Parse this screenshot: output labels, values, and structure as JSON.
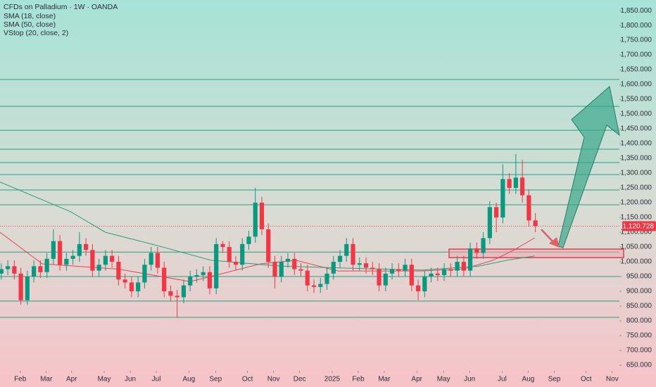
{
  "chart_data": {
    "type": "candlestick",
    "title": "CFDs on Palladium · 1W · OANDA",
    "indicators": [
      "SMA (18, close)",
      "SMA (50, close)",
      "VStop (20, close, 2)"
    ],
    "up_color": "#089981",
    "down_color": "#f23645",
    "open": [
      960,
      975,
      985,
      960,
      870,
      950,
      985,
      965,
      1010,
      1070,
      990,
      1010,
      1020,
      1060,
      1040,
      970,
      990,
      1020,
      1000,
      940,
      930,
      900,
      930,
      990,
      1030,
      980,
      900,
      885,
      880,
      920,
      950,
      955,
      965,
      910,
      1060,
      1050,
      1000,
      990,
      1060,
      1085,
      1200,
      1110,
      1000,
      950,
      1000,
      1010,
      975,
      970,
      920,
      915,
      925,
      960,
      1000,
      1020,
      1060,
      990,
      995,
      980,
      975,
      920,
      960,
      975,
      970,
      990,
      920,
      900,
      950,
      960,
      955,
      975,
      970,
      1000,
      970,
      1045,
      1030,
      1080,
      1185,
      1150,
      1280,
      1250,
      1285,
      1225,
      1140
    ],
    "high": [
      995,
      1005,
      1005,
      980,
      970,
      1005,
      1005,
      1030,
      1110,
      1090,
      1030,
      1040,
      1100,
      1080,
      1060,
      1010,
      1040,
      1040,
      1020,
      960,
      950,
      950,
      1010,
      1050,
      1050,
      1000,
      920,
      905,
      940,
      970,
      975,
      985,
      985,
      1080,
      1070,
      1070,
      1020,
      1080,
      1105,
      1250,
      1220,
      1130,
      1020,
      1020,
      1030,
      1030,
      995,
      990,
      940,
      945,
      980,
      1020,
      1040,
      1080,
      1080,
      1015,
      1015,
      1000,
      995,
      980,
      995,
      995,
      1010,
      1010,
      940,
      970,
      980,
      980,
      995,
      995,
      1020,
      1020,
      1065,
      1065,
      1100,
      1205,
      1200,
      1330,
      1300,
      1365,
      1345,
      1245,
      1165
    ],
    "low": [
      940,
      955,
      940,
      855,
      855,
      930,
      945,
      945,
      990,
      970,
      970,
      990,
      1000,
      1020,
      950,
      950,
      970,
      980,
      920,
      910,
      880,
      880,
      910,
      970,
      960,
      880,
      865,
      810,
      860,
      900,
      930,
      935,
      890,
      890,
      1030,
      980,
      970,
      970,
      1040,
      1065,
      1090,
      980,
      910,
      930,
      980,
      955,
      950,
      900,
      895,
      895,
      905,
      940,
      980,
      1000,
      970,
      970,
      960,
      955,
      900,
      900,
      940,
      950,
      950,
      900,
      870,
      880,
      930,
      935,
      935,
      950,
      950,
      950,
      950,
      1010,
      1010,
      1060,
      1100,
      1130,
      1230,
      1230,
      1200,
      1120,
      1100
    ],
    "close": [
      975,
      985,
      960,
      870,
      950,
      985,
      965,
      1010,
      1070,
      990,
      1010,
      1020,
      1060,
      1040,
      970,
      990,
      1020,
      1000,
      940,
      930,
      900,
      930,
      990,
      1030,
      980,
      900,
      885,
      880,
      920,
      950,
      955,
      965,
      910,
      1060,
      1050,
      1000,
      990,
      1060,
      1085,
      1200,
      1110,
      1000,
      950,
      1000,
      1010,
      975,
      970,
      920,
      915,
      925,
      960,
      1000,
      1020,
      1060,
      990,
      995,
      980,
      975,
      920,
      960,
      975,
      970,
      990,
      920,
      900,
      950,
      960,
      955,
      975,
      970,
      1000,
      970,
      1045,
      1030,
      1080,
      1185,
      1150,
      1280,
      1250,
      1285,
      1225,
      1140,
      1121
    ],
    "series": [
      {
        "name": "SMA (18, close)",
        "color": "#e8454f",
        "x": [
          -0.2,
          6.3,
          18,
          29,
          35.5,
          39.8,
          45.2,
          51.7,
          58.2,
          64.6,
          71.1,
          75.5,
          78.7,
          81.9
        ],
        "values": [
          1100,
          993,
          975,
          933,
          969,
          993,
          1005,
          969,
          969,
          969,
          976,
          1005,
          1040,
          1081
        ]
      },
      {
        "name": "SMA (50, close)",
        "color": "#26a17e",
        "x": [
          -0.2,
          10.6,
          16,
          23.6,
          32.2,
          43,
          53.8,
          64.6,
          73.3,
          77.6,
          81.9
        ],
        "values": [
          1270,
          1170,
          1100,
          1057,
          1005,
          985,
          978,
          972,
          985,
          1005,
          1020
        ]
      }
    ],
    "levels": [
      1617,
      1526,
      1445,
      1381,
      1336,
      1295,
      1243,
      1193,
      1033,
      950,
      867,
      812
    ],
    "zone": [
      1014,
      1043
    ],
    "last_price": {
      "value": 1120.728,
      "label": "1,120.728"
    },
    "xlim": [
      -0.2,
      94.9
    ],
    "ylim": [
      631,
      1886
    ],
    "xticks": [
      {
        "value": 2.9,
        "label": "Feb"
      },
      {
        "value": 6.9,
        "label": "Mar"
      },
      {
        "value": 10.8,
        "label": "Apr"
      },
      {
        "value": 15.8,
        "label": "May"
      },
      {
        "value": 19.8,
        "label": "Jun"
      },
      {
        "value": 23.8,
        "label": "Jul"
      },
      {
        "value": 28.8,
        "label": "Aug"
      },
      {
        "value": 32.9,
        "label": "Sep"
      },
      {
        "value": 37.8,
        "label": "Oct"
      },
      {
        "value": 41.8,
        "label": "Nov"
      },
      {
        "value": 45.8,
        "label": "Dec"
      },
      {
        "value": 50.8,
        "label": "2025"
      },
      {
        "value": 54.8,
        "label": "Feb"
      },
      {
        "value": 58.8,
        "label": "Mar"
      },
      {
        "value": 63.8,
        "label": "Apr"
      },
      {
        "value": 67.9,
        "label": "May"
      },
      {
        "value": 71.9,
        "label": "Jun"
      },
      {
        "value": 76.9,
        "label": "Jul"
      },
      {
        "value": 80.9,
        "label": "Aug"
      },
      {
        "value": 84.9,
        "label": "Sep"
      },
      {
        "value": 89.8,
        "label": "Oct"
      },
      {
        "value": 93.8,
        "label": "Nov"
      }
    ],
    "yticks": [
      {
        "value": 650,
        "label": "650.000"
      },
      {
        "value": 700,
        "label": "700.000"
      },
      {
        "value": 750,
        "label": "750.000"
      },
      {
        "value": 800,
        "label": "800.000"
      },
      {
        "value": 850,
        "label": "850.000"
      },
      {
        "value": 900,
        "label": "900.000"
      },
      {
        "value": 950,
        "label": "950.000"
      },
      {
        "value": 1000,
        "label": "1,000.000"
      },
      {
        "value": 1050,
        "label": "1,050.000"
      },
      {
        "value": 1100,
        "label": "1,100.000"
      },
      {
        "value": 1150,
        "label": "1,150.000"
      },
      {
        "value": 1200,
        "label": "1,200.000"
      },
      {
        "value": 1250,
        "label": "1,250.000"
      },
      {
        "value": 1300,
        "label": "1,300.000"
      },
      {
        "value": 1350,
        "label": "1,350.000"
      },
      {
        "value": 1400,
        "label": "1,400.000"
      },
      {
        "value": 1450,
        "label": "1,450.000"
      },
      {
        "value": 1500,
        "label": "1,500.000"
      },
      {
        "value": 1550,
        "label": "1,550.000"
      },
      {
        "value": 1600,
        "label": "1,600.000"
      },
      {
        "value": 1650,
        "label": "1,650.000"
      },
      {
        "value": 1700,
        "label": "1,700.000"
      },
      {
        "value": 1750,
        "label": "1,750.000"
      },
      {
        "value": 1800,
        "label": "1,800.000"
      },
      {
        "value": 1850,
        "label": "1,850.000"
      }
    ]
  }
}
